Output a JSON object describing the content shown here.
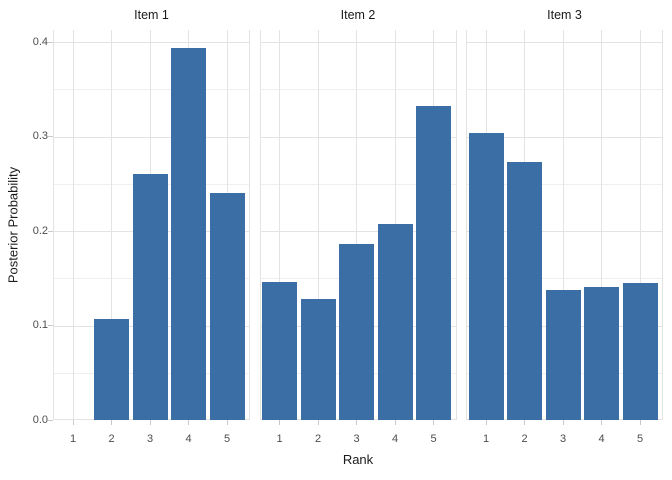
{
  "chart_data": {
    "type": "bar",
    "title": "",
    "xlabel": "Rank",
    "ylabel": "Posterior Probability",
    "x_tick_labels": [
      "1",
      "2",
      "3",
      "4",
      "5"
    ],
    "y_tick_labels": [
      "0.0",
      "0.1",
      "0.2",
      "0.3",
      "0.4"
    ],
    "y_tick_values": [
      0.0,
      0.1,
      0.2,
      0.3,
      0.4
    ],
    "y_minor_values": [
      0.05,
      0.15,
      0.25,
      0.35
    ],
    "ylim": [
      0,
      0.4127
    ],
    "grid": "on",
    "legend": "none",
    "facets": [
      {
        "label": "Item 1",
        "categories": [
          1,
          2,
          3,
          4,
          5
        ],
        "values": [
          0,
          0.107,
          0.26,
          0.394,
          0.24
        ]
      },
      {
        "label": "Item 2",
        "categories": [
          1,
          2,
          3,
          4,
          5
        ],
        "values": [
          0.146,
          0.128,
          0.186,
          0.207,
          0.332
        ]
      },
      {
        "label": "Item 3",
        "categories": [
          1,
          2,
          3,
          4,
          5
        ],
        "values": [
          0.304,
          0.273,
          0.138,
          0.141,
          0.145
        ]
      }
    ],
    "colors": {
      "bar_fill": "#3A6EA5",
      "grid_major": "#E3E3E3",
      "grid_minor": "#EFEFEF",
      "tick_mark": "#C9C9C9",
      "axis_text": "#4D4D4D",
      "title_text": "#1A1A1A"
    }
  }
}
